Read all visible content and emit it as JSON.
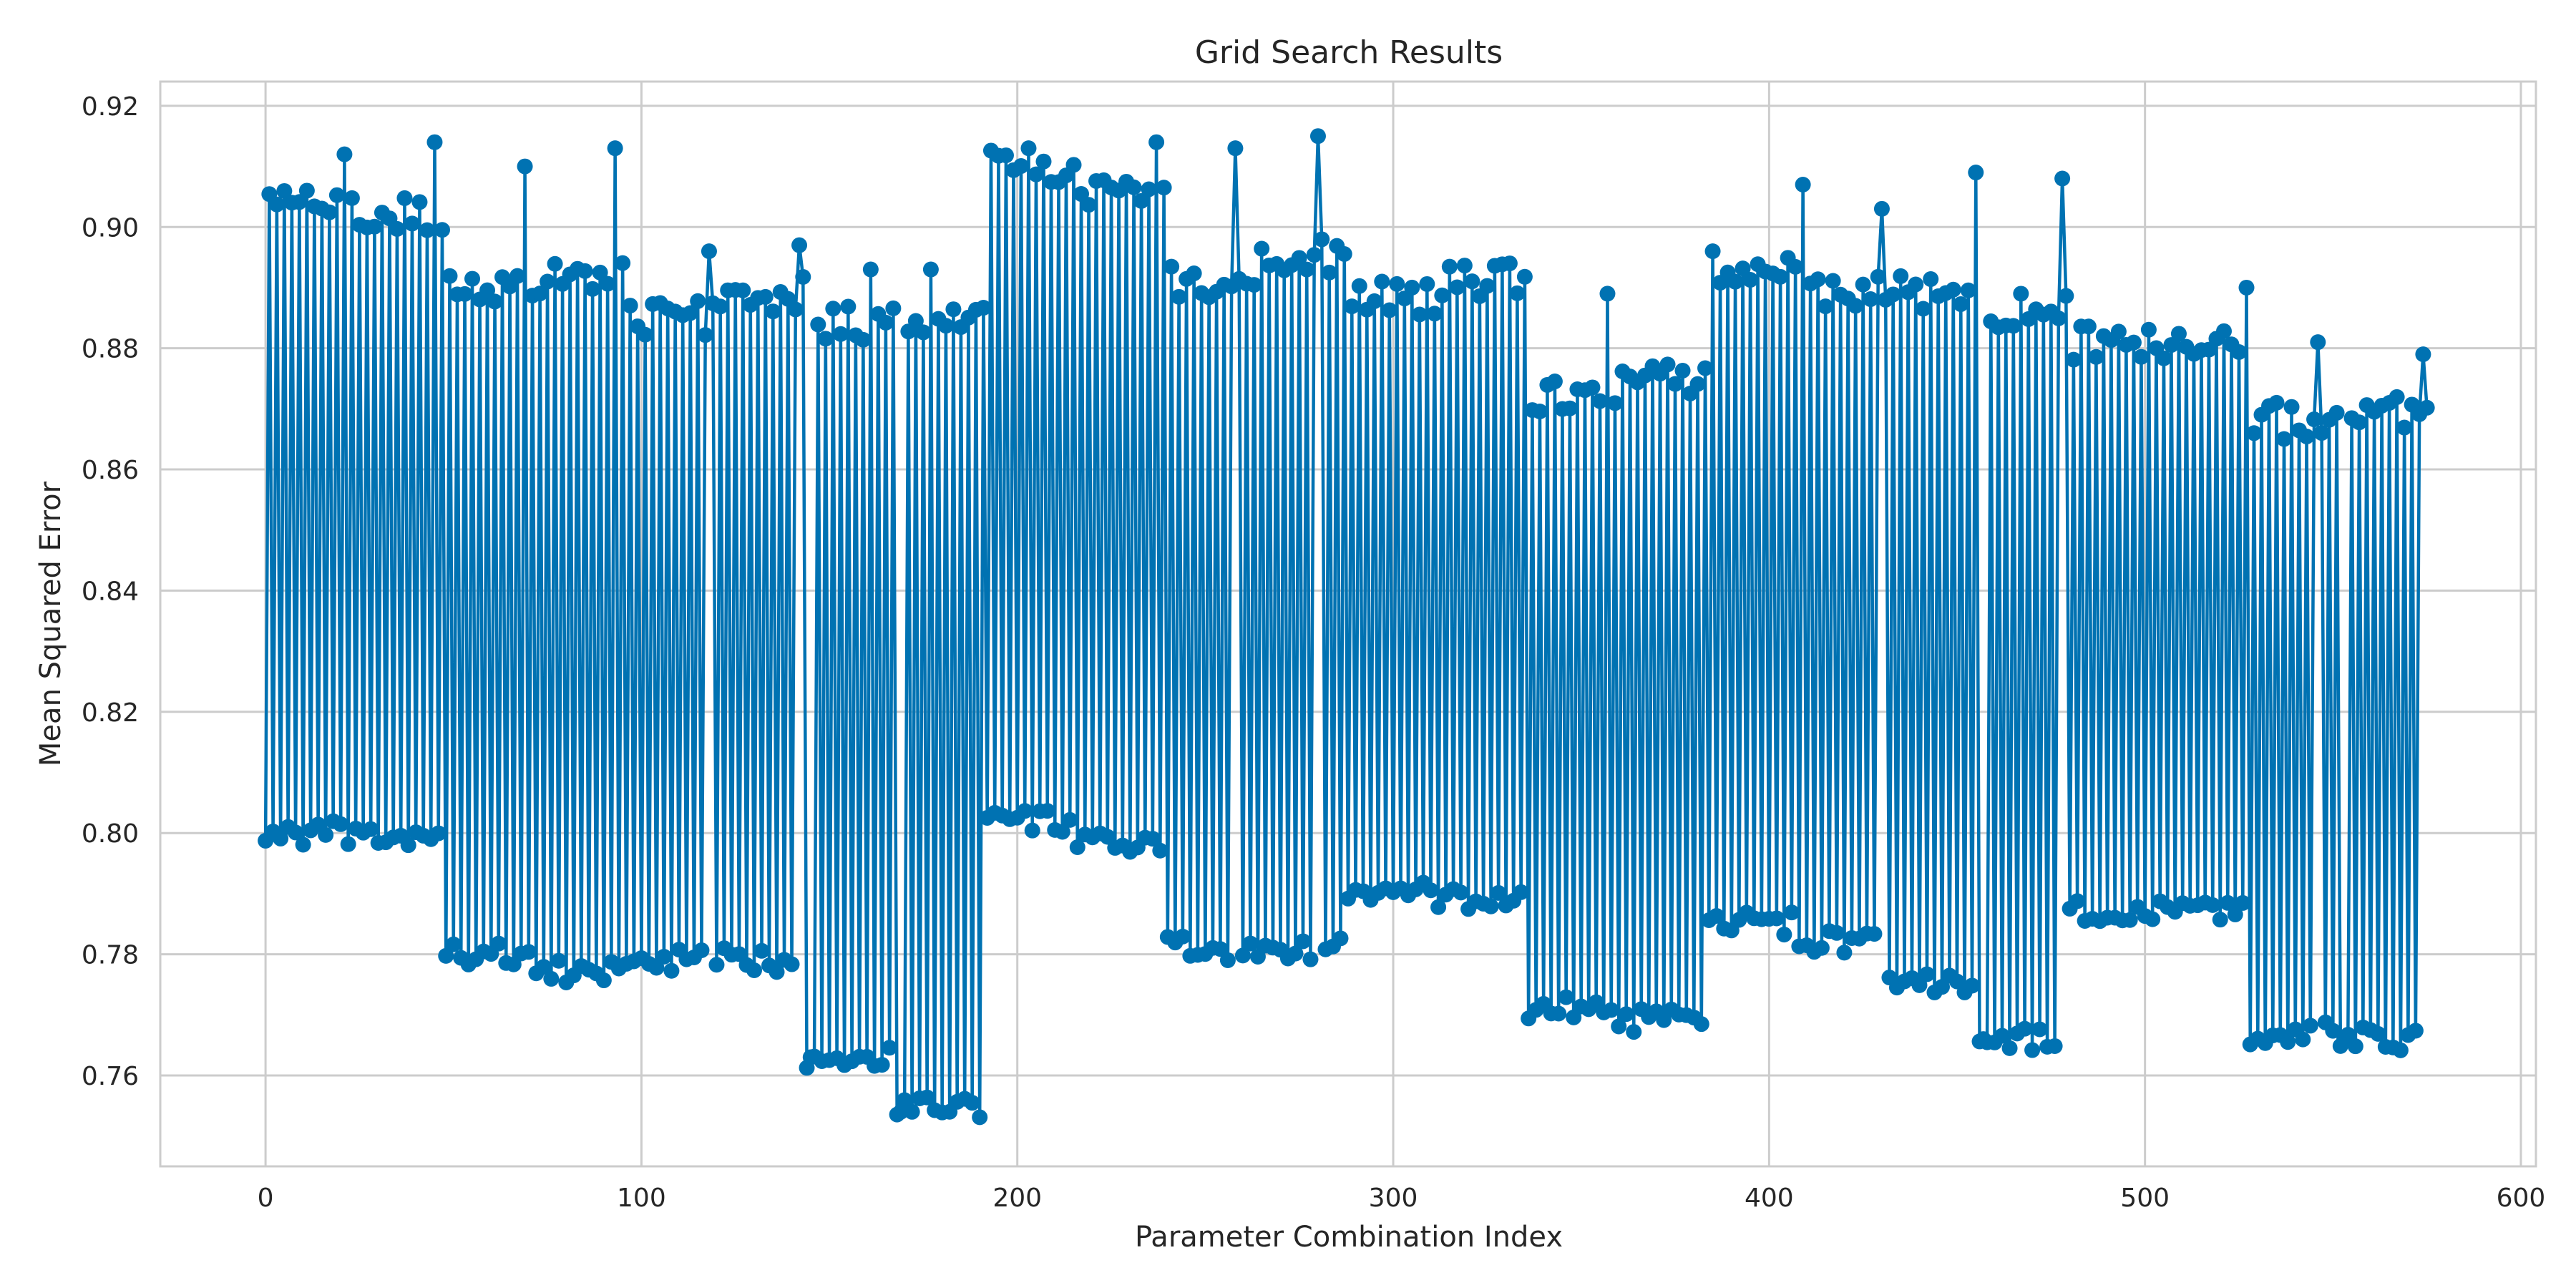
{
  "chart_data": {
    "type": "line",
    "title": "Grid Search Results",
    "xlabel": "Parameter Combination Index",
    "ylabel": "Mean Squared Error",
    "xlim": [
      -28,
      604
    ],
    "ylim": [
      0.745,
      0.924
    ],
    "xticks": [
      0,
      100,
      200,
      300,
      400,
      500,
      600
    ],
    "xtick_labels": [
      "0",
      "100",
      "200",
      "300",
      "400",
      "500",
      "600"
    ],
    "yticks": [
      0.76,
      0.78,
      0.8,
      0.82,
      0.84,
      0.86,
      0.88,
      0.9,
      0.92
    ],
    "ytick_labels": [
      "0.76",
      "0.78",
      "0.80",
      "0.82",
      "0.84",
      "0.86",
      "0.88",
      "0.90",
      "0.92"
    ],
    "grid": true,
    "marker": "circle",
    "n_points": 576,
    "segment_length": 24,
    "series": [
      {
        "color": "#0072B2",
        "segments": [
          {
            "start": 0,
            "low": 0.8,
            "high": 0.904
          },
          {
            "start": 24,
            "low": 0.799,
            "high": 0.902
          },
          {
            "start": 48,
            "low": 0.78,
            "high": 0.889
          },
          {
            "start": 72,
            "low": 0.777,
            "high": 0.892
          },
          {
            "start": 96,
            "low": 0.779,
            "high": 0.885
          },
          {
            "start": 120,
            "low": 0.779,
            "high": 0.889
          },
          {
            "start": 144,
            "low": 0.763,
            "high": 0.884
          },
          {
            "start": 168,
            "low": 0.755,
            "high": 0.885
          },
          {
            "start": 192,
            "low": 0.802,
            "high": 0.91
          },
          {
            "start": 216,
            "low": 0.798,
            "high": 0.906
          },
          {
            "start": 240,
            "low": 0.781,
            "high": 0.891
          },
          {
            "start": 264,
            "low": 0.781,
            "high": 0.895
          },
          {
            "start": 288,
            "low": 0.79,
            "high": 0.888
          },
          {
            "start": 312,
            "low": 0.789,
            "high": 0.891
          },
          {
            "start": 336,
            "low": 0.771,
            "high": 0.872
          },
          {
            "start": 360,
            "low": 0.769,
            "high": 0.875
          },
          {
            "start": 384,
            "low": 0.785,
            "high": 0.893
          },
          {
            "start": 408,
            "low": 0.782,
            "high": 0.889
          },
          {
            "start": 432,
            "low": 0.775,
            "high": 0.889
          },
          {
            "start": 456,
            "low": 0.766,
            "high": 0.886
          },
          {
            "start": 480,
            "low": 0.787,
            "high": 0.881
          },
          {
            "start": 504,
            "low": 0.787,
            "high": 0.88
          },
          {
            "start": 528,
            "low": 0.767,
            "high": 0.868
          },
          {
            "start": 552,
            "low": 0.766,
            "high": 0.869
          }
        ],
        "peaks": [
          {
            "x": 11,
            "y": 0.906
          },
          {
            "x": 21,
            "y": 0.912
          },
          {
            "x": 45,
            "y": 0.914
          },
          {
            "x": 69,
            "y": 0.91
          },
          {
            "x": 93,
            "y": 0.913
          },
          {
            "x": 118,
            "y": 0.896
          },
          {
            "x": 142,
            "y": 0.897
          },
          {
            "x": 161,
            "y": 0.893
          },
          {
            "x": 177,
            "y": 0.893
          },
          {
            "x": 203,
            "y": 0.913
          },
          {
            "x": 237,
            "y": 0.914
          },
          {
            "x": 258,
            "y": 0.913
          },
          {
            "x": 280,
            "y": 0.915
          },
          {
            "x": 297,
            "y": 0.891
          },
          {
            "x": 331,
            "y": 0.894
          },
          {
            "x": 357,
            "y": 0.889
          },
          {
            "x": 385,
            "y": 0.896
          },
          {
            "x": 409,
            "y": 0.907
          },
          {
            "x": 430,
            "y": 0.903
          },
          {
            "x": 455,
            "y": 0.909
          },
          {
            "x": 478,
            "y": 0.908
          },
          {
            "x": 527,
            "y": 0.89
          },
          {
            "x": 546,
            "y": 0.881
          },
          {
            "x": 574,
            "y": 0.879
          }
        ],
        "dips": [
          {
            "x": 169,
            "y": 0.754
          },
          {
            "x": 172,
            "y": 0.754
          },
          {
            "x": 145,
            "y": 0.763
          },
          {
            "x": 457,
            "y": 0.766
          },
          {
            "x": 553,
            "y": 0.766
          }
        ]
      }
    ]
  }
}
